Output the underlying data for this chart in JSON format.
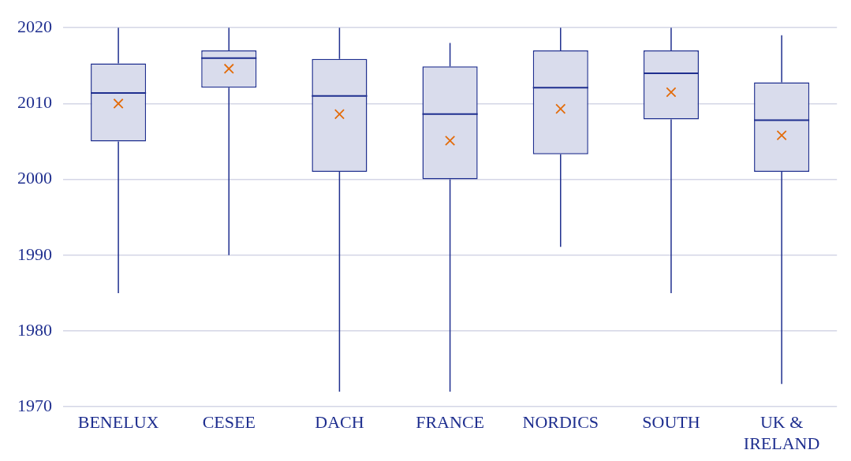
{
  "chart_data": {
    "type": "box",
    "categories": [
      "BENELUX",
      "CESEE",
      "DACH",
      "FRANCE",
      "NORDICS",
      "SOUTH",
      "UK & IRELAND"
    ],
    "series": [
      {
        "color": "#1f2f8f",
        "boxes": [
          {
            "low": 1985,
            "q1": 2005,
            "median": 2011.4,
            "q3": 2015.3,
            "high": 2020
          },
          {
            "low": 1990,
            "q1": 2012.1,
            "median": 2016,
            "q3": 2017,
            "high": 2020
          },
          {
            "low": 1972,
            "q1": 2001,
            "median": 2011,
            "q3": 2015.9,
            "high": 2020
          },
          {
            "low": 1972,
            "q1": 2000,
            "median": 2008.6,
            "q3": 2014.9,
            "high": 2018
          },
          {
            "low": 1991.1,
            "q1": 2003.3,
            "median": 2012.1,
            "q3": 2017,
            "high": 2020
          },
          {
            "low": 1985,
            "q1": 2007.9,
            "median": 2014,
            "q3": 2017,
            "high": 2020
          },
          {
            "low": 1973,
            "q1": 2001,
            "median": 2007.8,
            "q3": 2012.8,
            "high": 2019
          }
        ]
      },
      {
        "type": "scatter",
        "color": "#e36c0a",
        "marker": "cross",
        "x": [
          "BENELUX",
          "CESEE",
          "DACH",
          "FRANCE",
          "NORDICS",
          "SOUTH",
          "UK & IRELAND"
        ],
        "values": [
          2010,
          2014.6,
          2008.6,
          2005.1,
          2009.3,
          2011.5,
          2005.8
        ]
      }
    ],
    "ylim": [
      1970,
      2020
    ],
    "yticks": [
      1970,
      1980,
      1990,
      2000,
      2010,
      2020
    ],
    "grid": "y",
    "legend": false
  }
}
